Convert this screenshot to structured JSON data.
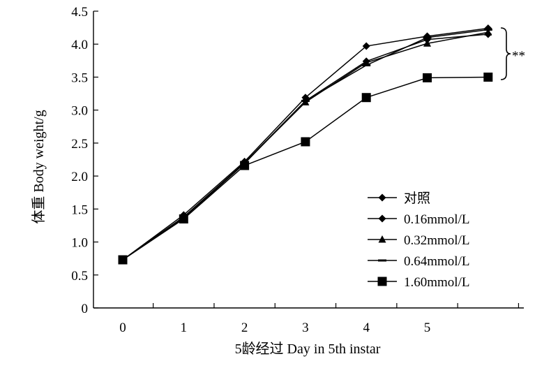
{
  "chart_data": {
    "type": "line",
    "xlabel": "5龄经过 Day in 5th instar",
    "ylabel": "体重 Body weight/g",
    "x_tick_labels": [
      "0",
      "1",
      "2",
      "3",
      "4",
      "5"
    ],
    "y_tick_labels": [
      "0",
      "0.5",
      "1.0",
      "1.5",
      "2.0",
      "2.5",
      "3.0",
      "3.5",
      "4.0",
      "4.5"
    ],
    "x": [
      0,
      1,
      2,
      3,
      4,
      5,
      6
    ],
    "xlim": [
      -0.3,
      6.5
    ],
    "ylim": [
      0,
      4.5
    ],
    "grid": false,
    "legend_position": "lower-right",
    "significance_annotation": "**",
    "series": [
      {
        "name": "对照",
        "marker": "diamond",
        "values": [
          0.73,
          1.41,
          2.22,
          3.19,
          3.97,
          4.12,
          4.24
        ]
      },
      {
        "name": "0.16mmol/L",
        "marker": "diamond",
        "values": [
          0.73,
          1.38,
          2.2,
          3.14,
          3.74,
          4.07,
          4.15
        ]
      },
      {
        "name": "0.32mmol/L",
        "marker": "triangle",
        "values": [
          0.73,
          1.37,
          2.2,
          3.12,
          3.72,
          4.01,
          4.18
        ]
      },
      {
        "name": "0.64mmol/L",
        "marker": "dash",
        "values": [
          0.73,
          1.36,
          2.19,
          3.14,
          3.68,
          4.1,
          4.22
        ]
      },
      {
        "name": "1.60mmol/L",
        "marker": "square",
        "values": [
          0.73,
          1.35,
          2.16,
          2.52,
          3.19,
          3.49,
          3.5
        ]
      }
    ],
    "colors": {
      "line": "#000000",
      "marker": "#000000"
    }
  }
}
